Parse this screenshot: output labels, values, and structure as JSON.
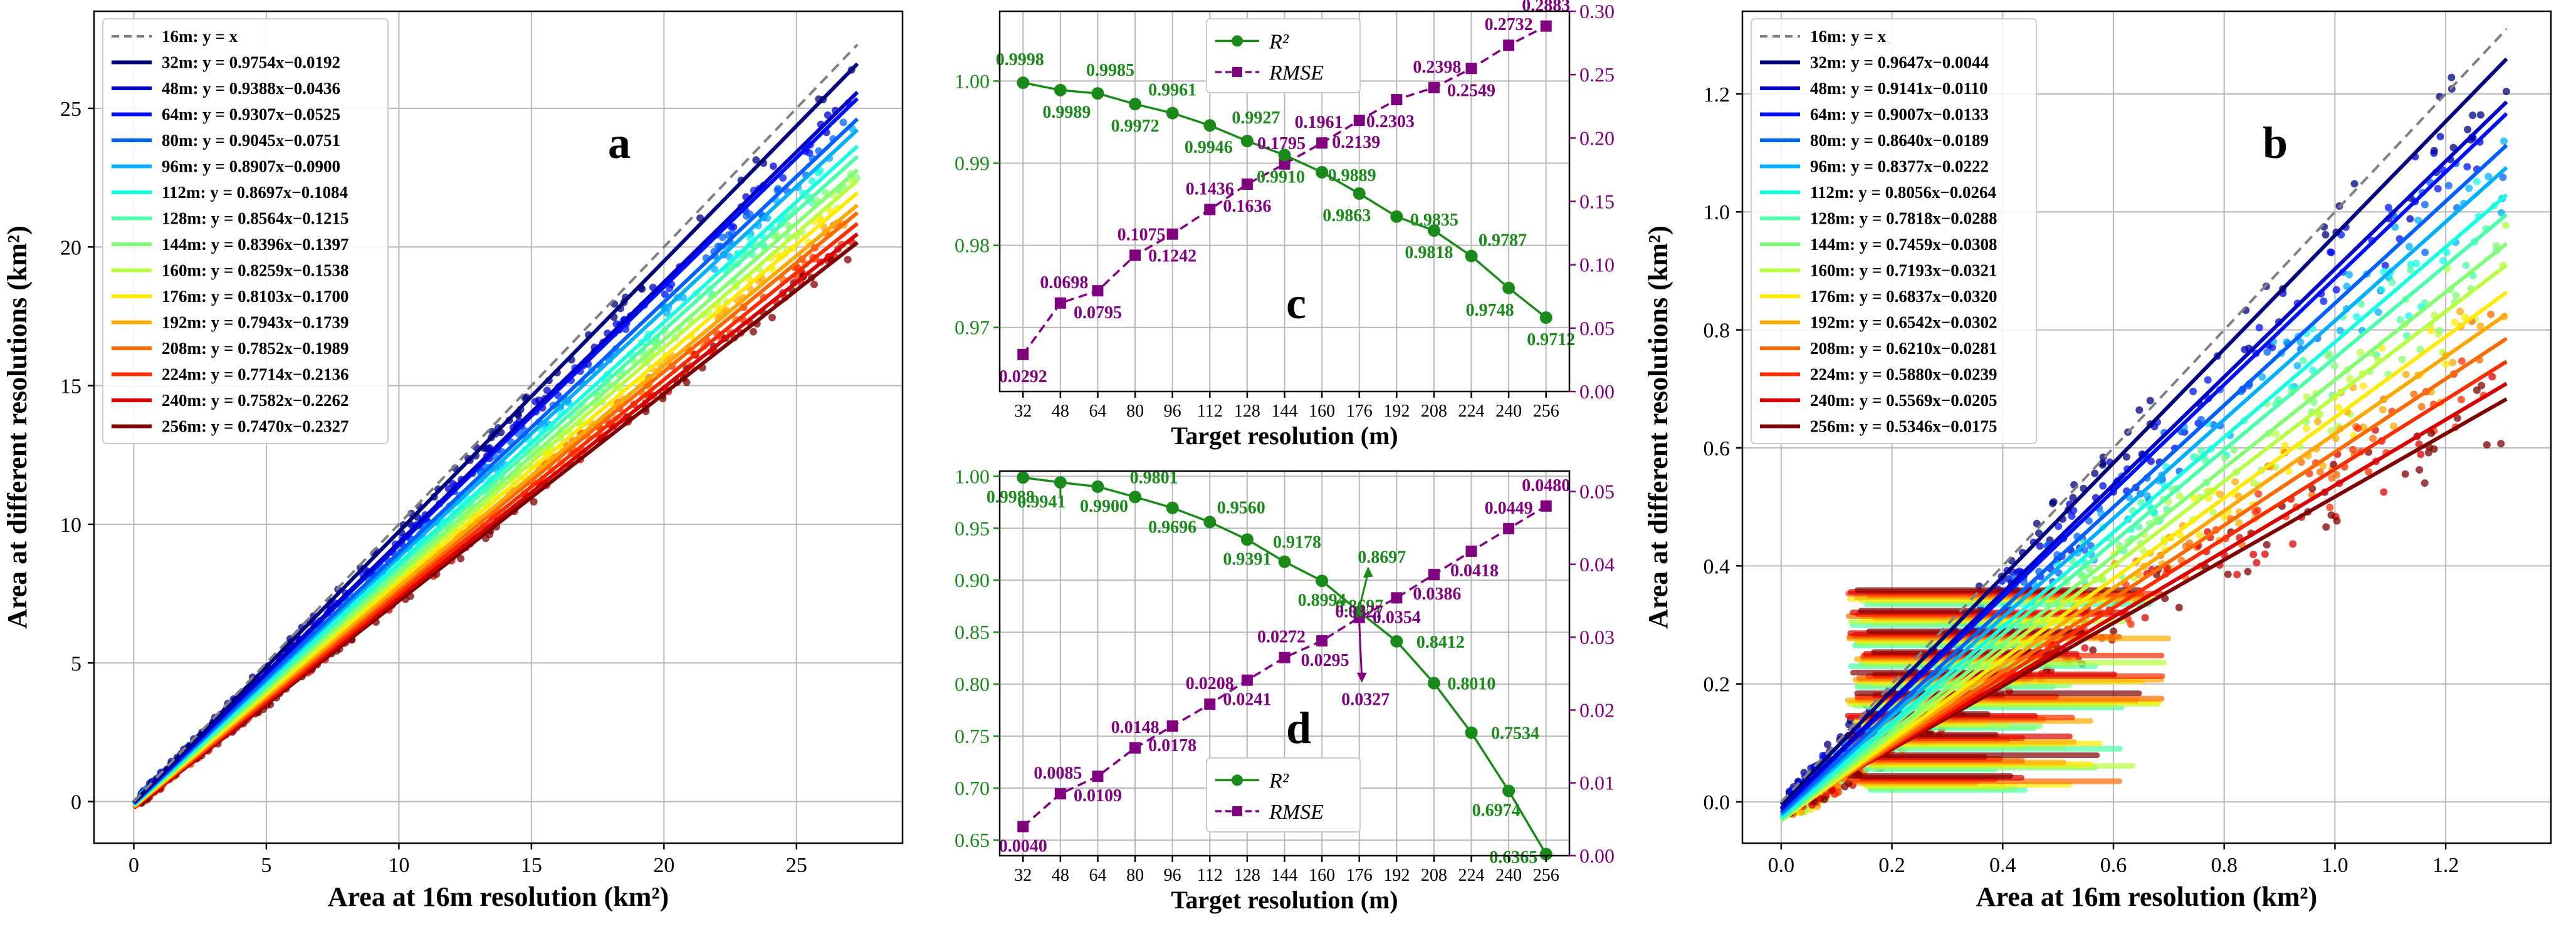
{
  "colors": {
    "identity": "#808080",
    "r2": "#1a8a1a",
    "rmse": "#800080",
    "ramp": [
      "#00007f",
      "#0000c8",
      "#0010ff",
      "#0060ff",
      "#00b0ff",
      "#16ffe1",
      "#4dffaa",
      "#82ff74",
      "#b7ff40",
      "#ffea00",
      "#ffa900",
      "#ff6a00",
      "#ff2d00",
      "#d90000",
      "#7f0000"
    ]
  },
  "chart_data": [
    {
      "id": "a",
      "type": "scatter",
      "letter": "a",
      "xlabel": "Area at 16m resolution (km²)",
      "ylabel": "Area at different resolutions (km²)",
      "xlim": [
        -1.5,
        29
      ],
      "ylim": [
        -1.5,
        28.5
      ],
      "xticks": [
        0,
        5,
        10,
        15,
        20,
        25
      ],
      "yticks": [
        0,
        5,
        10,
        15,
        20,
        25
      ],
      "xmax_data": 27.3,
      "legend_position": "upper-left",
      "identity_label": "16m: y = x",
      "series": [
        {
          "name": "32m: y = 0.9754x−0.0192",
          "slope": 0.9754,
          "intercept": -0.0192
        },
        {
          "name": "48m: y = 0.9388x−0.0436",
          "slope": 0.9388,
          "intercept": -0.0436
        },
        {
          "name": "64m: y = 0.9307x−0.0525",
          "slope": 0.9307,
          "intercept": -0.0525
        },
        {
          "name": "80m: y = 0.9045x−0.0751",
          "slope": 0.9045,
          "intercept": -0.0751
        },
        {
          "name": "96m: y = 0.8907x−0.0900",
          "slope": 0.8907,
          "intercept": -0.09
        },
        {
          "name": "112m: y = 0.8697x−0.1084",
          "slope": 0.8697,
          "intercept": -0.1084
        },
        {
          "name": "128m: y = 0.8564x−0.1215",
          "slope": 0.8564,
          "intercept": -0.1215
        },
        {
          "name": "144m: y = 0.8396x−0.1397",
          "slope": 0.8396,
          "intercept": -0.1397
        },
        {
          "name": "160m: y = 0.8259x−0.1538",
          "slope": 0.8259,
          "intercept": -0.1538
        },
        {
          "name": "176m: y = 0.8103x−0.1700",
          "slope": 0.8103,
          "intercept": -0.17
        },
        {
          "name": "192m: y = 0.7943x−0.1739",
          "slope": 0.7943,
          "intercept": -0.1739
        },
        {
          "name": "208m: y = 0.7852x−0.1989",
          "slope": 0.7852,
          "intercept": -0.1989
        },
        {
          "name": "224m: y = 0.7714x−0.2136",
          "slope": 0.7714,
          "intercept": -0.2136
        },
        {
          "name": "240m: y = 0.7582x−0.2262",
          "slope": 0.7582,
          "intercept": -0.2262
        },
        {
          "name": "256m: y = 0.7470x−0.2327",
          "slope": 0.747,
          "intercept": -0.2327
        }
      ]
    },
    {
      "id": "b",
      "type": "scatter",
      "letter": "b",
      "xlabel": "Area at 16m resolution (km²)",
      "ylabel": "Area at different resolutions (km²)",
      "xlim": [
        -0.07,
        1.39
      ],
      "ylim": [
        -0.07,
        1.34
      ],
      "xticks": [
        0.0,
        0.2,
        0.4,
        0.6,
        0.8,
        1.0,
        1.2
      ],
      "yticks": [
        0.0,
        0.2,
        0.4,
        0.6,
        0.8,
        1.0,
        1.2
      ],
      "tick_decimals": 1,
      "xmax_data": 1.31,
      "legend_position": "upper-left",
      "identity_label": "16m: y = x",
      "series": [
        {
          "name": "32m: y = 0.9647x−0.0044",
          "slope": 0.9647,
          "intercept": -0.0044
        },
        {
          "name": "48m: y = 0.9141x−0.0110",
          "slope": 0.9141,
          "intercept": -0.011
        },
        {
          "name": "64m: y = 0.9007x−0.0133",
          "slope": 0.9007,
          "intercept": -0.0133
        },
        {
          "name": "80m: y = 0.8640x−0.0189",
          "slope": 0.864,
          "intercept": -0.0189
        },
        {
          "name": "96m: y = 0.8377x−0.0222",
          "slope": 0.8377,
          "intercept": -0.0222
        },
        {
          "name": "112m: y = 0.8056x−0.0264",
          "slope": 0.8056,
          "intercept": -0.0264
        },
        {
          "name": "128m: y = 0.7818x−0.0288",
          "slope": 0.7818,
          "intercept": -0.0288
        },
        {
          "name": "144m: y = 0.7459x−0.0308",
          "slope": 0.7459,
          "intercept": -0.0308
        },
        {
          "name": "160m: y = 0.7193x−0.0321",
          "slope": 0.7193,
          "intercept": -0.0321
        },
        {
          "name": "176m: y = 0.6837x−0.0320",
          "slope": 0.6837,
          "intercept": -0.032
        },
        {
          "name": "192m: y = 0.6542x−0.0302",
          "slope": 0.6542,
          "intercept": -0.0302
        },
        {
          "name": "208m: y = 0.6210x−0.0281",
          "slope": 0.621,
          "intercept": -0.0281
        },
        {
          "name": "224m: y = 0.5880x−0.0239",
          "slope": 0.588,
          "intercept": -0.0239
        },
        {
          "name": "240m: y = 0.5569x−0.0205",
          "slope": 0.5569,
          "intercept": -0.0205
        },
        {
          "name": "256m: y = 0.5346x−0.0175",
          "slope": 0.5346,
          "intercept": -0.0175
        }
      ]
    },
    {
      "id": "c",
      "type": "line",
      "letter": "c",
      "xlabel": "Target resolution (m)",
      "categories": [
        32,
        48,
        64,
        80,
        96,
        112,
        128,
        144,
        160,
        176,
        192,
        208,
        224,
        240,
        256
      ],
      "xlim": [
        22,
        266
      ],
      "left_axis": {
        "name": "R²",
        "ylim": [
          0.9622,
          1.0085
        ],
        "ticks": [
          0.97,
          0.98,
          0.99,
          1.0
        ],
        "tick_decimals": 2
      },
      "right_axis": {
        "name": "RMSE",
        "ylim": [
          0.0,
          0.3
        ],
        "ticks": [
          0.0,
          0.05,
          0.1,
          0.15,
          0.2,
          0.25,
          0.3
        ],
        "tick_decimals": 2
      },
      "legend": [
        "R²",
        "RMSE"
      ],
      "legend_position": "upper-center",
      "series": [
        {
          "name": "R²",
          "axis": "left",
          "values": [
            0.9998,
            0.9989,
            0.9985,
            0.9972,
            0.9961,
            0.9946,
            0.9927,
            0.991,
            0.9889,
            0.9863,
            0.9835,
            0.9818,
            0.9787,
            0.9748,
            0.9712
          ],
          "labels": [
            "0.9998",
            "0.9989",
            "0.9985",
            "0.9972",
            "0.9961",
            "0.9946",
            "0.9927",
            "0.9910",
            "0.9889",
            "0.9863",
            "0.9835",
            "0.9818",
            "0.9787",
            "0.9748",
            "0.9712"
          ]
        },
        {
          "name": "RMSE",
          "axis": "right",
          "values": [
            0.0292,
            0.0698,
            0.0795,
            0.1075,
            0.1242,
            0.1436,
            0.1636,
            0.1795,
            0.1961,
            0.2139,
            0.2303,
            0.2398,
            0.2549,
            0.2732,
            0.2883
          ],
          "labels": [
            "0.0292",
            "0.0698",
            "0.0795",
            "0.1075",
            "0.1242",
            "0.1436",
            "0.1636",
            "0.1795",
            "0.1961",
            "0.2139",
            "0.2303",
            "0.2398",
            "0.2549",
            "0.2732",
            "0.2883"
          ]
        }
      ]
    },
    {
      "id": "d",
      "type": "line",
      "letter": "d",
      "xlabel": "Target resolution (m)",
      "categories": [
        32,
        48,
        64,
        80,
        96,
        112,
        128,
        144,
        160,
        176,
        192,
        208,
        224,
        240,
        256
      ],
      "xlim": [
        22,
        266
      ],
      "left_axis": {
        "name": "R²",
        "ylim": [
          0.635,
          1.005
        ],
        "ticks": [
          0.65,
          0.7,
          0.75,
          0.8,
          0.85,
          0.9,
          0.95,
          1.0
        ],
        "tick_decimals": 2
      },
      "right_axis": {
        "name": "RMSE",
        "ylim": [
          0.0,
          0.0528
        ],
        "ticks": [
          0.0,
          0.01,
          0.02,
          0.03,
          0.04,
          0.05
        ],
        "tick_decimals": 2
      },
      "legend": [
        "R²",
        "RMSE"
      ],
      "legend_position": "lower-center",
      "series": [
        {
          "name": "R²",
          "axis": "left",
          "values": [
            0.9988,
            0.9941,
            0.99,
            0.9801,
            0.9696,
            0.956,
            0.9391,
            0.9178,
            0.8994,
            0.8697,
            0.8412,
            0.801,
            0.7534,
            0.6974,
            0.6365
          ],
          "labels": [
            "0.9988",
            "0.9941",
            "0.9900",
            "0.9801",
            "0.9696",
            "0.9560",
            "0.9391",
            "0.9178",
            "0.8994",
            "0.8697",
            "0.8412",
            "0.8010",
            "0.7534",
            "0.6974",
            "0.6365"
          ]
        },
        {
          "name": "RMSE",
          "axis": "right",
          "values": [
            0.004,
            0.0085,
            0.0109,
            0.0148,
            0.0178,
            0.0208,
            0.0241,
            0.0272,
            0.0295,
            0.0327,
            0.0354,
            0.0386,
            0.0418,
            0.0449,
            0.048
          ],
          "labels": [
            "0.0040",
            "0.0085",
            "0.0109",
            "0.0148",
            "0.0178",
            "0.0208",
            "0.0241",
            "0.0272",
            "0.0295",
            "0.0327",
            "0.0354",
            "0.0386",
            "0.0418",
            "0.0449",
            "0.0480"
          ]
        }
      ]
    }
  ]
}
